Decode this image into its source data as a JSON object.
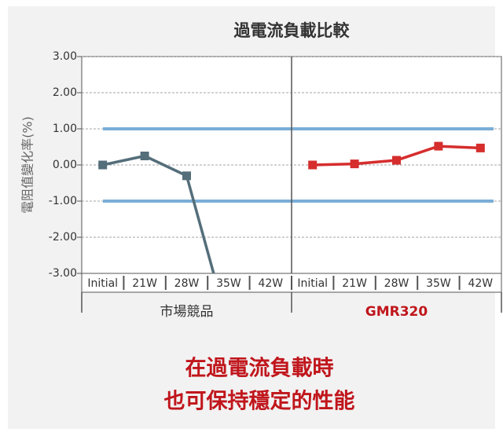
{
  "chart_data": {
    "type": "line",
    "title": "過電流負載比較",
    "y_label": "電阻值變化率(%)",
    "categories": [
      "Initial",
      "21W",
      "28W",
      "35W",
      "42W",
      "Initial",
      "21W",
      "28W",
      "35W",
      "42W"
    ],
    "groups": [
      {
        "label": "市場競品",
        "color": "#333333"
      },
      {
        "label": "GMR320",
        "color": "#c0161c"
      }
    ],
    "series": [
      {
        "color": "#546e7a",
        "values": [
          0,
          0.25,
          -0.3,
          -4.5,
          null,
          null,
          null,
          null,
          null,
          null
        ]
      },
      {
        "color": "#d62d2d",
        "values": [
          null,
          null,
          null,
          null,
          null,
          0,
          0.03,
          0.13,
          0.52,
          0.47
        ]
      }
    ],
    "ylim": [
      -3,
      3
    ],
    "yticks": [
      {
        "value": 3,
        "label": "3.00"
      },
      {
        "value": 2,
        "label": "2.00"
      },
      {
        "value": 1,
        "label": "1.00"
      },
      {
        "value": 0,
        "label": "0.00"
      },
      {
        "value": -1,
        "label": "-1.00"
      },
      {
        "value": -2,
        "label": "-2.00"
      },
      {
        "value": -3,
        "label": "-3.00"
      }
    ],
    "grid": true,
    "reference_lines": [
      1,
      -1
    ],
    "reference_color": "#7aaed6",
    "annotations": [
      "在過電流負載時",
      "也可保持穩定的性能"
    ],
    "annotation_color": "#c0161c"
  }
}
